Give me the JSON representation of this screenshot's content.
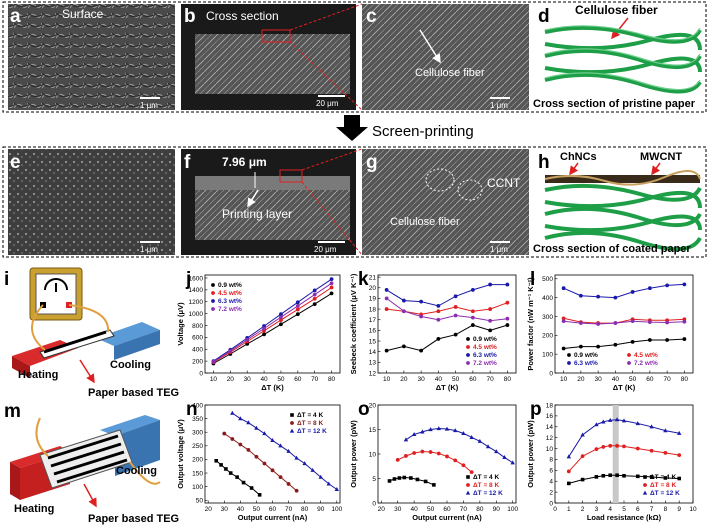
{
  "panel_labels": {
    "a": "a",
    "b": "b",
    "c": "c",
    "d": "d",
    "e": "e",
    "f": "f",
    "g": "g",
    "h": "h",
    "i": "i",
    "j": "j",
    "k": "k",
    "l": "l",
    "m": "m",
    "n": "n",
    "o": "o",
    "p": "p"
  },
  "sem": {
    "a_label": "Surface",
    "b_label": "Cross section",
    "c_label": "Cellulose fiber",
    "d_label": "Cellulose fiber",
    "d_caption": "Cross section of pristine paper",
    "f_thickness": "7.96 μm",
    "f_label": "Printing layer",
    "g_ccnt": "CCNT",
    "g_cellulose": "Cellulose fiber",
    "h_chncs": "ChNCs",
    "h_mwcnt": "MWCNT",
    "h_caption": "Cross section of coated paper",
    "scale_1um": "1 μm",
    "scale_20um": "20 μm"
  },
  "process": {
    "label": "Screen-printing"
  },
  "teg_i": {
    "heating": "Heating",
    "cooling": "Cooling",
    "caption": "Paper based TEG"
  },
  "teg_m": {
    "heating": "Heating",
    "cooling": "Cooling",
    "caption": "Paper based TEG"
  },
  "colors": {
    "black": "#000000",
    "red": "#e02020",
    "blue": "#1a1aa8",
    "purple": "#8b2db0",
    "fiber": "#1f9e48",
    "arrow": "#e02020",
    "coating": "#c8a060"
  },
  "chart_data": [
    {
      "id": "j",
      "type": "line",
      "xlabel": "ΔT (K)",
      "ylabel": "Voltage (μV)",
      "x": [
        10,
        20,
        30,
        40,
        50,
        60,
        70,
        80
      ],
      "xticks": [
        10,
        20,
        30,
        40,
        50,
        60,
        70,
        80
      ],
      "yticks": [
        0,
        200,
        400,
        600,
        800,
        1000,
        1200,
        1400,
        1600
      ],
      "xlim": [
        5,
        85
      ],
      "ylim": [
        0,
        1650
      ],
      "legend_position": "top-left",
      "series": [
        {
          "name": "0.9 wt%",
          "color": "#000000",
          "marker": "circle",
          "values": [
            160,
            320,
            490,
            650,
            820,
            990,
            1160,
            1340
          ]
        },
        {
          "name": "4.5 wt%",
          "color": "#e02020",
          "marker": "circle",
          "values": [
            180,
            350,
            530,
            710,
            890,
            1070,
            1250,
            1440
          ]
        },
        {
          "name": "6.3 wt%",
          "color": "#1a1aa8",
          "marker": "circle",
          "values": [
            200,
            390,
            590,
            790,
            990,
            1190,
            1390,
            1580
          ]
        },
        {
          "name": "7.2 wt%",
          "color": "#8b2db0",
          "marker": "circle",
          "values": [
            190,
            370,
            560,
            750,
            940,
            1130,
            1320,
            1510
          ]
        }
      ]
    },
    {
      "id": "k",
      "type": "line",
      "xlabel": "ΔT (K)",
      "ylabel": "Seebeck coefficient (μV K⁻¹)",
      "x": [
        10,
        20,
        30,
        40,
        50,
        60,
        70,
        80
      ],
      "xticks": [
        10,
        20,
        30,
        40,
        50,
        60,
        70,
        80
      ],
      "yticks": [
        12,
        13,
        14,
        15,
        16,
        17,
        18,
        19,
        20,
        21
      ],
      "xlim": [
        5,
        85
      ],
      "ylim": [
        12,
        21.2
      ],
      "legend_position": "bottom-right",
      "series": [
        {
          "name": "0.9 wt%",
          "color": "#000000",
          "marker": "circle",
          "values": [
            14.1,
            14.5,
            14.1,
            15.2,
            15.6,
            16.5,
            16.0,
            16.5
          ]
        },
        {
          "name": "4.5 wt%",
          "color": "#e02020",
          "marker": "circle",
          "values": [
            18.0,
            17.8,
            17.5,
            17.8,
            18.2,
            17.8,
            18.0,
            18.6
          ]
        },
        {
          "name": "6.3 wt%",
          "color": "#1a1aa8",
          "marker": "circle",
          "values": [
            19.8,
            18.8,
            18.7,
            18.3,
            19.2,
            19.8,
            20.3,
            20.3
          ]
        },
        {
          "name": "7.2 wt%",
          "color": "#8b2db0",
          "marker": "circle",
          "values": [
            19.0,
            17.8,
            17.3,
            17.0,
            17.4,
            17.2,
            16.9,
            17.1
          ]
        }
      ]
    },
    {
      "id": "l",
      "type": "line",
      "xlabel": "ΔT (K)",
      "ylabel": "Power factor (nW m⁻¹ K⁻²)",
      "x": [
        10,
        20,
        30,
        40,
        50,
        60,
        70,
        80
      ],
      "xticks": [
        10,
        20,
        30,
        40,
        50,
        60,
        70,
        80
      ],
      "yticks": [
        0,
        100,
        200,
        300,
        400,
        500
      ],
      "xlim": [
        5,
        85
      ],
      "ylim": [
        0,
        520
      ],
      "legend_position": "bottom",
      "series": [
        {
          "name": "0.9 wt%",
          "color": "#000000",
          "marker": "circle",
          "values": [
            130,
            140,
            140,
            150,
            165,
            175,
            175,
            180
          ]
        },
        {
          "name": "4.5 wt%",
          "color": "#e02020",
          "marker": "circle",
          "values": [
            290,
            270,
            265,
            265,
            285,
            280,
            280,
            285
          ]
        },
        {
          "name": "6.3 wt%",
          "color": "#1a1aa8",
          "marker": "circle",
          "values": [
            450,
            410,
            405,
            400,
            430,
            450,
            465,
            470
          ]
        },
        {
          "name": "7.2 wt%",
          "color": "#8b2db0",
          "marker": "circle",
          "values": [
            275,
            265,
            260,
            265,
            275,
            270,
            268,
            272
          ]
        }
      ]
    },
    {
      "id": "n",
      "type": "line",
      "xlabel": "Output current (nA)",
      "ylabel": "Output voltage (μV)",
      "xticks": [
        20,
        30,
        40,
        50,
        60,
        70,
        80,
        90,
        100
      ],
      "yticks": [
        50,
        100,
        150,
        200,
        250,
        300,
        350,
        400
      ],
      "xlim": [
        18,
        102
      ],
      "ylim": [
        40,
        400
      ],
      "legend_position": "top-right",
      "series": [
        {
          "name": "ΔT = 4 K",
          "color": "#000000",
          "marker": "square",
          "x": [
            25,
            28,
            31,
            34,
            38,
            42,
            47,
            52
          ],
          "values": [
            195,
            180,
            165,
            150,
            135,
            115,
            95,
            70
          ]
        },
        {
          "name": "ΔT = 8 K",
          "color": "#8b1a1a",
          "marker": "circle",
          "x": [
            30,
            35,
            40,
            45,
            50,
            55,
            60,
            65,
            70,
            75
          ],
          "values": [
            295,
            275,
            255,
            235,
            210,
            185,
            160,
            135,
            110,
            85
          ]
        },
        {
          "name": "ΔT = 12 K",
          "color": "#1a1aa8",
          "marker": "triangle",
          "x": [
            35,
            40,
            45,
            50,
            55,
            60,
            65,
            70,
            75,
            80,
            85,
            90,
            95,
            100
          ],
          "values": [
            370,
            350,
            335,
            315,
            295,
            270,
            250,
            230,
            205,
            185,
            160,
            135,
            110,
            90
          ]
        }
      ]
    },
    {
      "id": "o",
      "type": "line",
      "xlabel": "Output current (nA)",
      "ylabel": "Output power (pW)",
      "xticks": [
        20,
        30,
        40,
        50,
        60,
        70,
        80,
        90,
        100
      ],
      "yticks": [
        0,
        5,
        10,
        15,
        20
      ],
      "xlim": [
        18,
        102
      ],
      "ylim": [
        0,
        20
      ],
      "legend_position": "bottom-right",
      "series": [
        {
          "name": "ΔT = 4 K",
          "color": "#000000",
          "marker": "square",
          "x": [
            25,
            28,
            31,
            34,
            38,
            42,
            47,
            52
          ],
          "values": [
            4.5,
            4.9,
            5.1,
            5.2,
            5.1,
            4.8,
            4.4,
            3.7
          ]
        },
        {
          "name": "ΔT = 8 K",
          "color": "#e02020",
          "marker": "circle",
          "x": [
            30,
            35,
            40,
            45,
            50,
            55,
            60,
            65,
            70,
            75
          ],
          "values": [
            8.8,
            9.6,
            10.2,
            10.5,
            10.4,
            10.1,
            9.5,
            8.7,
            7.7,
            6.3
          ]
        },
        {
          "name": "ΔT = 12 K",
          "color": "#1a1aa8",
          "marker": "triangle",
          "x": [
            35,
            40,
            45,
            50,
            55,
            60,
            65,
            70,
            75,
            80,
            85,
            90,
            95,
            100
          ],
          "values": [
            12.9,
            14.0,
            14.5,
            15.0,
            15.2,
            15.1,
            14.8,
            14.2,
            13.4,
            12.6,
            11.5,
            10.5,
            9.3,
            8.2
          ]
        }
      ]
    },
    {
      "id": "p",
      "type": "line",
      "xlabel": "Load resistance (kΩ)",
      "ylabel": "Output power (pW)",
      "xticks": [
        0,
        1,
        2,
        3,
        4,
        5,
        6,
        7,
        8,
        9,
        10
      ],
      "yticks": [
        0,
        2,
        4,
        6,
        8,
        10,
        12,
        14,
        16,
        18
      ],
      "xlim": [
        0,
        10
      ],
      "ylim": [
        0,
        18
      ],
      "legend_position": "bottom-right",
      "highlight_x": 4.4,
      "series": [
        {
          "name": "ΔT = 4 K",
          "color": "#000000",
          "marker": "square",
          "x": [
            1,
            2,
            3,
            3.5,
            4,
            4.5,
            5,
            6,
            7,
            8,
            9
          ],
          "values": [
            3.6,
            4.3,
            4.8,
            5.0,
            5.1,
            5.1,
            5.0,
            4.9,
            4.8,
            4.6,
            4.5
          ]
        },
        {
          "name": "ΔT = 8 K",
          "color": "#e02020",
          "marker": "circle",
          "x": [
            1,
            2,
            3,
            3.5,
            4,
            4.5,
            5,
            6,
            7,
            8,
            9
          ],
          "values": [
            5.8,
            8.6,
            9.9,
            10.3,
            10.5,
            10.5,
            10.4,
            10.0,
            9.6,
            9.2,
            8.8
          ]
        },
        {
          "name": "ΔT = 12 K",
          "color": "#1a1aa8",
          "marker": "triangle",
          "x": [
            1,
            2,
            3,
            3.5,
            4,
            4.5,
            5,
            6,
            7,
            8,
            9
          ],
          "values": [
            8.5,
            12.5,
            14.4,
            14.9,
            15.2,
            15.3,
            15.1,
            14.6,
            14.0,
            13.3,
            12.8
          ]
        }
      ]
    }
  ]
}
